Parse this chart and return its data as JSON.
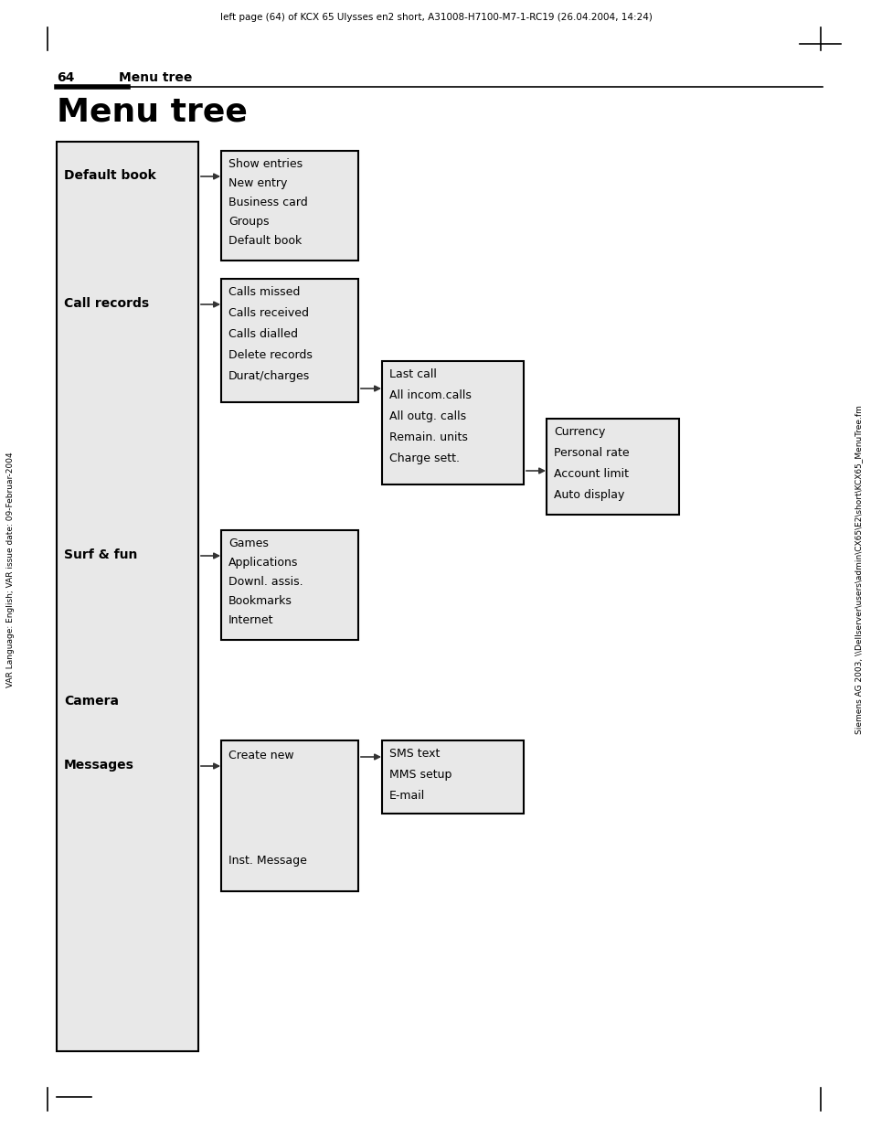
{
  "page_header": "left page (64) of KCX 65 Ulysses en2 short, A31008-H7100-M7-1-RC19 (26.04.2004, 14:24)",
  "section_num": "64",
  "section_title": "Menu tree",
  "main_title": "Menu tree",
  "bg_color": "#ffffff",
  "box_bg": "#e0e0e0",
  "box_border": "#000000",
  "text_color": "#000000",
  "left_margin_text": "VAR Language: English; VAR issue date: 09-Februar-2004",
  "right_margin_text": "Siemens AG 2003, \\\\Dellserver\\users\\admin\\CX65\\E2\\short\\KCX65_MenuTree.fm"
}
